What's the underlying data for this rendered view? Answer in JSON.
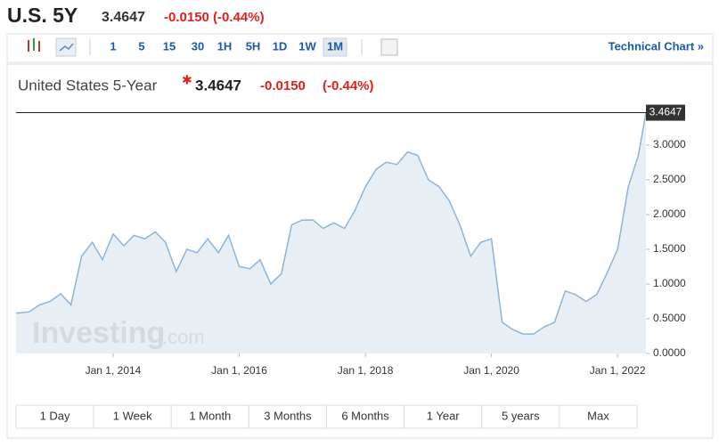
{
  "header": {
    "symbol": "U.S. 5Y",
    "price": "3.4647",
    "change": "-0.0150 (-0.44%)"
  },
  "toolbar": {
    "intervals": [
      "1",
      "5",
      "15",
      "30",
      "1H",
      "5H",
      "1D",
      "1W",
      "1M"
    ],
    "active_interval": "1M",
    "technical_chart": "Technical Chart »"
  },
  "chart_data": {
    "type": "line",
    "title": "United States 5-Year",
    "price": "3.4647",
    "change": "-0.0150",
    "change_percent": "(-0.44%)",
    "watermark": "Investing",
    "watermark_suffix": ".com",
    "color": "#8db4d6",
    "fill": "#dfeaf2",
    "x": [
      2012.46,
      2012.67,
      2012.83,
      2013.0,
      2013.17,
      2013.33,
      2013.5,
      2013.67,
      2013.83,
      2014.0,
      2014.17,
      2014.33,
      2014.5,
      2014.67,
      2014.83,
      2015.0,
      2015.17,
      2015.33,
      2015.5,
      2015.67,
      2015.83,
      2016.0,
      2016.17,
      2016.33,
      2016.5,
      2016.67,
      2016.83,
      2017.0,
      2017.17,
      2017.33,
      2017.5,
      2017.67,
      2017.83,
      2018.0,
      2018.17,
      2018.33,
      2018.5,
      2018.67,
      2018.83,
      2019.0,
      2019.17,
      2019.33,
      2019.5,
      2019.67,
      2019.83,
      2020.0,
      2020.17,
      2020.33,
      2020.5,
      2020.67,
      2020.83,
      2021.0,
      2021.17,
      2021.33,
      2021.5,
      2021.67,
      2021.83,
      2022.0,
      2022.17,
      2022.33,
      2022.45
    ],
    "values": [
      0.58,
      0.6,
      0.7,
      0.75,
      0.86,
      0.7,
      1.4,
      1.6,
      1.35,
      1.72,
      1.55,
      1.7,
      1.65,
      1.75,
      1.6,
      1.18,
      1.5,
      1.45,
      1.65,
      1.45,
      1.7,
      1.25,
      1.22,
      1.35,
      1.0,
      1.15,
      1.85,
      1.92,
      1.92,
      1.8,
      1.88,
      1.8,
      2.05,
      2.4,
      2.65,
      2.75,
      2.72,
      2.9,
      2.85,
      2.5,
      2.4,
      2.2,
      1.85,
      1.4,
      1.6,
      1.65,
      0.45,
      0.35,
      0.28,
      0.28,
      0.38,
      0.45,
      0.9,
      0.85,
      0.75,
      0.85,
      1.15,
      1.5,
      2.4,
      2.85,
      3.4647
    ],
    "last_value": 3.4647,
    "xlim": [
      2012.46,
      2022.45
    ],
    "ylim": [
      0,
      3.6
    ],
    "xticks": [
      {
        "value": 2014,
        "label": "Jan 1, 2014"
      },
      {
        "value": 2016,
        "label": "Jan 1, 2016"
      },
      {
        "value": 2018,
        "label": "Jan 1, 2018"
      },
      {
        "value": 2020,
        "label": "Jan 1, 2020"
      },
      {
        "value": 2022,
        "label": "Jan 1, 2022"
      }
    ],
    "yticks": [
      {
        "value": 0,
        "label": "0.0000"
      },
      {
        "value": 0.5,
        "label": "0.5000"
      },
      {
        "value": 1,
        "label": "1.0000"
      },
      {
        "value": 1.5,
        "label": "1.5000"
      },
      {
        "value": 2,
        "label": "2.0000"
      },
      {
        "value": 2.5,
        "label": "2.5000"
      },
      {
        "value": 3,
        "label": "3.0000"
      }
    ],
    "grid": false
  },
  "ranges": [
    "1 Day",
    "1 Week",
    "1 Month",
    "3 Months",
    "6 Months",
    "1 Year",
    "5 years",
    "Max"
  ]
}
